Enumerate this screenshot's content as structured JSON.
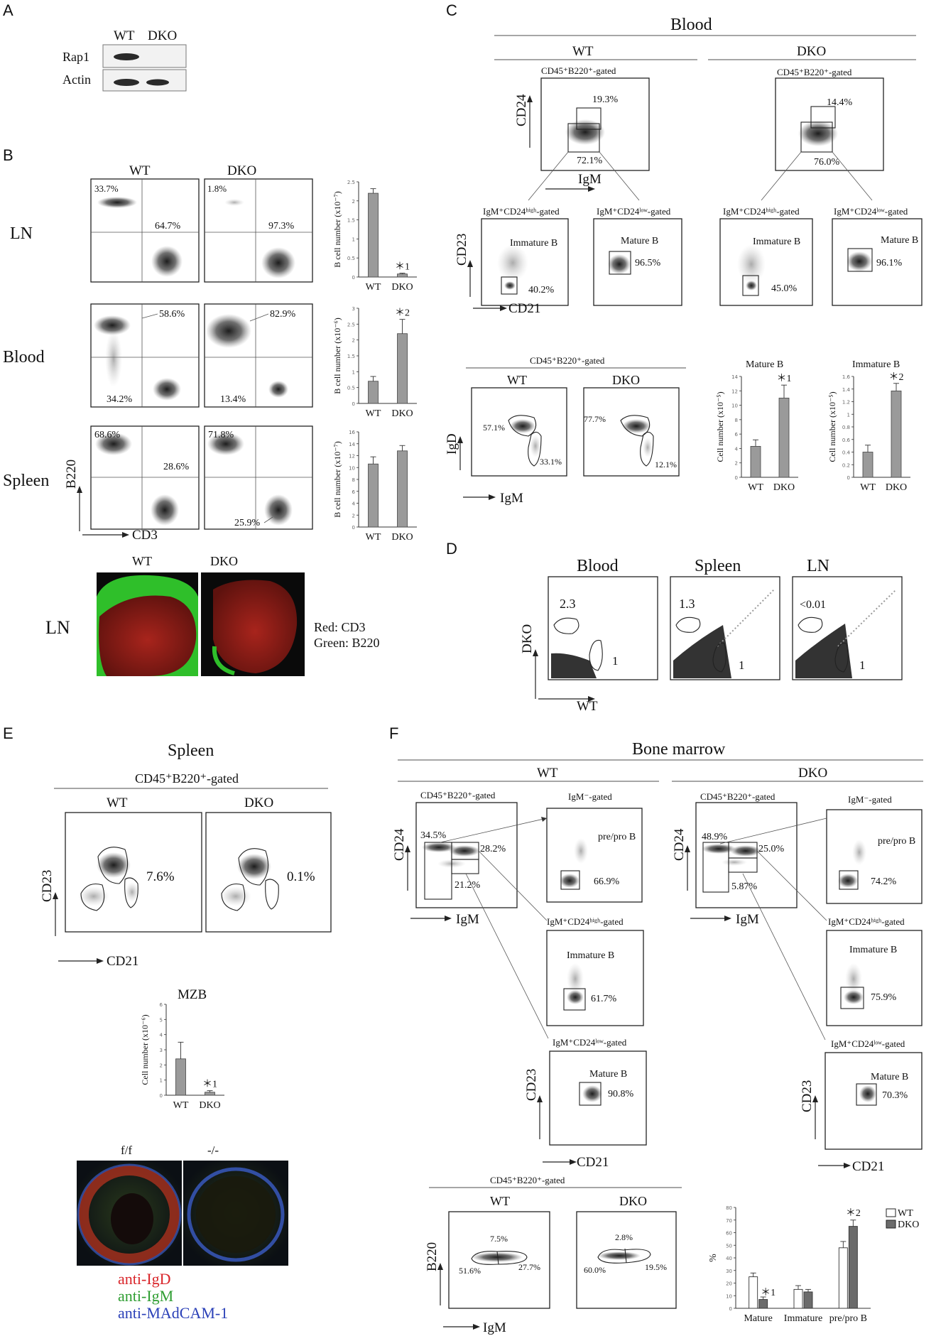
{
  "panels": {
    "A": {
      "letter": "A",
      "cols": [
        "WT",
        "DKO"
      ],
      "rows": [
        "Rap1",
        "Actin"
      ]
    },
    "B": {
      "letter": "B",
      "cols": [
        "WT",
        "DKO"
      ],
      "row_labels": [
        "LN",
        "Blood",
        "Spleen"
      ],
      "yaxis": "B220",
      "xaxis": "CD3",
      "ln": {
        "wt_tl": "33.7%",
        "wt_br": "64.7%",
        "dko_tl": "1.8%",
        "dko_br": "97.3%"
      },
      "blood": {
        "wt_tr": "58.6%",
        "wt_bl": "34.2%",
        "dko_tr": "82.9%",
        "dko_bl": "13.4%"
      },
      "spleen": {
        "wt_tl": "68.6%",
        "wt_br": "28.6%",
        "wt_bl": "",
        "dko_tl": "71.8%",
        "dko_bl": "25.9%"
      },
      "bar_ylabels": [
        "B cell number (x10⁻⁷)",
        "B cell number (x10⁻⁶)",
        "B cell number (x10⁻⁷)"
      ],
      "bar_cats": [
        "WT",
        "DKO"
      ],
      "sig": [
        "＊1",
        "＊2"
      ],
      "image_cols": [
        "WT",
        "DKO"
      ],
      "image_row": "LN",
      "legend": [
        "Red: CD3",
        "Green: B220"
      ]
    },
    "C": {
      "letter": "C",
      "title": "Blood",
      "cols": [
        "WT",
        "DKO"
      ],
      "gate_top": "CD45⁺B220⁺-gated",
      "yaxis_top": "CD24",
      "xaxis_top": "IgM",
      "wt_top": [
        "19.3%",
        "72.1%"
      ],
      "dko_top": [
        "14.4%",
        "76.0%"
      ],
      "sub_gates": [
        "IgM⁺CD24ʰⁱᵍʰ-gated",
        "IgM⁺CD24ˡᵒʷ-gated"
      ],
      "immature": "Immature B",
      "mature": "Mature B",
      "wt_sub": [
        "40.2%",
        "96.5%"
      ],
      "dko_sub": [
        "45.0%",
        "96.1%"
      ],
      "yaxis_sub": "CD23",
      "xaxis_sub": "CD21",
      "gate_bottom": "CD45⁺B220⁺-gated",
      "bottom_cols": [
        "WT",
        "DKO"
      ],
      "yaxis_bottom": "IgD",
      "xaxis_bottom": "IgM",
      "wt_bottom": [
        "57.1%",
        "33.1%"
      ],
      "dko_bottom": [
        "77.7%",
        "12.1%"
      ],
      "bar_titles": [
        "Mature B",
        "Immature B"
      ],
      "bar_ylabel": "Cell number (x10⁻⁵)",
      "bar_cats": [
        "WT",
        "DKO"
      ],
      "sig": [
        "＊1",
        "＊2"
      ]
    },
    "D": {
      "letter": "D",
      "titles": [
        "Blood",
        "Spleen",
        "LN"
      ],
      "yaxis": "DKO",
      "xaxis": "WT",
      "ratios": [
        "2.3",
        "1.3",
        "<0.01"
      ],
      "ones": [
        "1",
        "1",
        "1"
      ]
    },
    "E": {
      "letter": "E",
      "title": "Spleen",
      "gate": "CD45⁺B220⁺-gated",
      "cols": [
        "WT",
        "DKO"
      ],
      "yaxis": "CD23",
      "xaxis": "CD21",
      "pcts": [
        "7.6%",
        "0.1%"
      ],
      "bar_title": "MZB",
      "bar_ylabel": "Cell number (x10⁻⁶)",
      "bar_cats": [
        "WT",
        "DKO"
      ],
      "sig": "＊1",
      "image_cols": [
        "f/f",
        "-/-"
      ],
      "stain": [
        "anti-IgD",
        "anti-IgM",
        "anti-MAdCAM-1"
      ]
    },
    "F": {
      "letter": "F",
      "title": "Bone marrow",
      "cols": [
        "WT",
        "DKO"
      ],
      "gate_main": "CD45⁺B220⁺-gated",
      "yaxis_main": "CD24",
      "xaxis_main": "IgM",
      "wt_main": [
        "34.5%",
        "28.2%",
        "21.2%"
      ],
      "dko_main": [
        "48.9%",
        "25.0%",
        "5.87%"
      ],
      "sub_gates": [
        "IgM⁻-gated",
        "IgM⁺CD24ʰⁱᵍʰ-gated",
        "IgM⁺CD24ˡᵒʷ-gated"
      ],
      "pre_pro": "pre/pro B",
      "immature": "Immature B",
      "mature": "Mature B",
      "wt_sub": [
        "66.9%",
        "61.7%",
        "90.8%"
      ],
      "dko_sub": [
        "74.2%",
        "75.9%",
        "70.3%"
      ],
      "yaxis_sub": "CD23",
      "xaxis_sub": "CD21",
      "gate_bottom": "CD45⁺B220⁺-gated",
      "bottom_cols": [
        "WT",
        "DKO"
      ],
      "yaxis_bottom": "B220",
      "xaxis_bottom": "IgM",
      "wt_bottom": [
        "7.5%",
        "51.6%",
        "27.7%"
      ],
      "dko_bottom": [
        "2.8%",
        "60.0%",
        "19.5%"
      ],
      "legend": [
        "WT",
        "DKO"
      ],
      "pct_label": "%",
      "sig": [
        "＊1",
        "＊2"
      ]
    }
  },
  "chart_data": [
    {
      "type": "bar",
      "panel": "B-LN",
      "categories": [
        "WT",
        "DKO"
      ],
      "values": [
        2.2,
        0.08
      ],
      "errors": [
        0.12,
        0.02
      ],
      "ylim": [
        0,
        2.5
      ],
      "yticks": [
        0,
        0.5,
        1,
        1.5,
        2,
        2.5
      ],
      "ylabel": "B cell number (x10⁻⁷)"
    },
    {
      "type": "bar",
      "panel": "B-Blood",
      "categories": [
        "WT",
        "DKO"
      ],
      "values": [
        0.7,
        2.2
      ],
      "errors": [
        0.15,
        0.45
      ],
      "ylim": [
        0,
        3
      ],
      "yticks": [
        0,
        0.5,
        1,
        1.5,
        2,
        2.5,
        3
      ],
      "ylabel": "B cell number (x10⁻⁶)"
    },
    {
      "type": "bar",
      "panel": "B-Spleen",
      "categories": [
        "WT",
        "DKO"
      ],
      "values": [
        10.6,
        12.8
      ],
      "errors": [
        1.2,
        0.9
      ],
      "ylim": [
        0,
        16
      ],
      "yticks": [
        0,
        2,
        4,
        6,
        8,
        10,
        12,
        14,
        16
      ],
      "ylabel": "B cell number (x10⁻⁷)"
    },
    {
      "type": "bar",
      "panel": "C-Mature B",
      "categories": [
        "WT",
        "DKO"
      ],
      "values": [
        4.3,
        11.0
      ],
      "errors": [
        0.9,
        1.8
      ],
      "ylim": [
        0,
        14
      ],
      "yticks": [
        0,
        2,
        4,
        6,
        8,
        10,
        12,
        14
      ],
      "ylabel": "Cell number (x10⁻⁵)"
    },
    {
      "type": "bar",
      "panel": "C-Immature B",
      "categories": [
        "WT",
        "DKO"
      ],
      "values": [
        0.4,
        1.37
      ],
      "errors": [
        0.11,
        0.12
      ],
      "ylim": [
        0,
        1.6
      ],
      "yticks": [
        0,
        0.2,
        0.4,
        0.6,
        0.8,
        1,
        1.2,
        1.4,
        1.6
      ],
      "ylabel": "Cell number (x10⁻⁵)"
    },
    {
      "type": "bar",
      "panel": "E-MZB",
      "categories": [
        "WT",
        "DKO"
      ],
      "values": [
        2.4,
        0.2
      ],
      "errors": [
        1.1,
        0.1
      ],
      "ylim": [
        0,
        6
      ],
      "yticks": [
        0,
        1,
        2,
        3,
        4,
        5,
        6
      ],
      "ylabel": "Cell number (x10⁻⁶)"
    },
    {
      "type": "bar",
      "panel": "F-summary",
      "categories": [
        "Mature",
        "Immature",
        "pre/pro B"
      ],
      "series": [
        {
          "name": "WT",
          "values": [
            25,
            15,
            48
          ],
          "errors": [
            3,
            3,
            5
          ]
        },
        {
          "name": "DKO",
          "values": [
            7,
            13,
            65
          ],
          "errors": [
            2,
            2,
            5
          ]
        }
      ],
      "ylim": [
        0,
        80
      ],
      "yticks": [
        0,
        10,
        20,
        30,
        40,
        50,
        60,
        70,
        80
      ],
      "ylabel": "%"
    }
  ]
}
